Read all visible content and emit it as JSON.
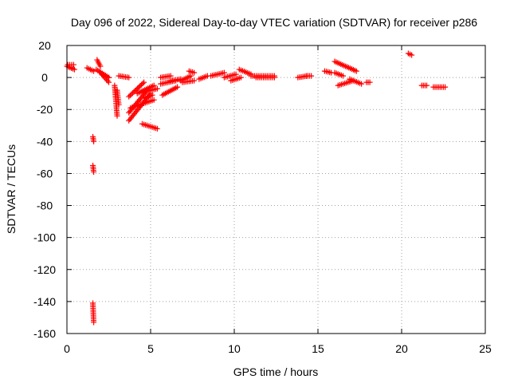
{
  "chart_data": {
    "type": "scatter",
    "title": "Day 096 of 2022, Sidereal Day-to-day VTEC variation (SDTVAR) for receiver p286",
    "xlabel": "GPS time / hours",
    "ylabel": "SDTVAR / TECUs",
    "xlim": [
      0,
      25
    ],
    "ylim": [
      -160,
      20
    ],
    "xticks": [
      0,
      5,
      10,
      15,
      20,
      25
    ],
    "xtick_labels": [
      "0",
      "5",
      "10",
      "15",
      "20",
      "25"
    ],
    "yticks": [
      20,
      0,
      -20,
      -40,
      -60,
      -80,
      -100,
      -120,
      -140,
      -160
    ],
    "ytick_labels": [
      "20",
      "0",
      "-20",
      "-40",
      "-60",
      "-80",
      "-100",
      "-120",
      "-140",
      "-160"
    ],
    "grid": true,
    "marker": "plus",
    "color": "#ff0000",
    "series": [
      {
        "name": "SDTVAR",
        "segments": [
          {
            "x0": 0.0,
            "x1": 0.45,
            "y0": 7,
            "y1": 5
          },
          {
            "x0": 0.05,
            "x1": 0.4,
            "y0": 8,
            "y1": 8
          },
          {
            "x0": 1.2,
            "x1": 1.6,
            "y0": 6,
            "y1": 4
          },
          {
            "x0": 1.55,
            "x1": 1.6,
            "y0": -37,
            "y1": -40
          },
          {
            "x0": 1.55,
            "x1": 1.6,
            "y0": -55,
            "y1": -59
          },
          {
            "x0": 1.55,
            "x1": 1.6,
            "y0": -141,
            "y1": -153
          },
          {
            "x0": 1.8,
            "x1": 2.0,
            "y0": 11,
            "y1": 7
          },
          {
            "x0": 1.75,
            "x1": 2.5,
            "y0": 5,
            "y1": 0
          },
          {
            "x0": 2.0,
            "x1": 2.5,
            "y0": 3,
            "y1": -3
          },
          {
            "x0": 2.1,
            "x1": 2.5,
            "y0": 2,
            "y1": 0
          },
          {
            "x0": 2.85,
            "x1": 3.0,
            "y0": -5,
            "y1": -24
          },
          {
            "x0": 3.0,
            "x1": 3.1,
            "y0": -8,
            "y1": -17
          },
          {
            "x0": 3.1,
            "x1": 3.7,
            "y0": 1,
            "y1": 0
          },
          {
            "x0": 3.7,
            "x1": 4.6,
            "y0": -12,
            "y1": -3
          },
          {
            "x0": 3.7,
            "x1": 5.0,
            "y0": -27,
            "y1": -10
          },
          {
            "x0": 3.7,
            "x1": 4.8,
            "y0": -22,
            "y1": -8
          },
          {
            "x0": 3.8,
            "x1": 5.2,
            "y0": -19,
            "y1": -14
          },
          {
            "x0": 4.2,
            "x1": 5.2,
            "y0": -10,
            "y1": -5
          },
          {
            "x0": 4.6,
            "x1": 5.4,
            "y0": -9,
            "y1": -7
          },
          {
            "x0": 4.5,
            "x1": 5.4,
            "y0": -29,
            "y1": -32
          },
          {
            "x0": 4.6,
            "x1": 5.1,
            "y0": -13,
            "y1": -11
          },
          {
            "x0": 5.6,
            "x1": 6.2,
            "y0": 0,
            "y1": 1
          },
          {
            "x0": 5.6,
            "x1": 6.5,
            "y0": -4,
            "y1": -2
          },
          {
            "x0": 5.7,
            "x1": 6.6,
            "y0": -11,
            "y1": -6
          },
          {
            "x0": 6.2,
            "x1": 6.8,
            "y0": -2,
            "y1": -1
          },
          {
            "x0": 6.8,
            "x1": 7.4,
            "y0": -2,
            "y1": 1
          },
          {
            "x0": 6.9,
            "x1": 7.6,
            "y0": -3,
            "y1": -2
          },
          {
            "x0": 7.3,
            "x1": 7.6,
            "y0": 4,
            "y1": 3
          },
          {
            "x0": 7.9,
            "x1": 8.4,
            "y0": -1,
            "y1": 1
          },
          {
            "x0": 8.6,
            "x1": 9.4,
            "y0": 1,
            "y1": 3
          },
          {
            "x0": 9.4,
            "x1": 10.1,
            "y0": 0,
            "y1": 2
          },
          {
            "x0": 9.8,
            "x1": 10.4,
            "y0": -2,
            "y1": 0
          },
          {
            "x0": 10.3,
            "x1": 11.0,
            "y0": 5,
            "y1": 2
          },
          {
            "x0": 11.0,
            "x1": 12.4,
            "y0": 1,
            "y1": 1
          },
          {
            "x0": 11.3,
            "x1": 12.4,
            "y0": 0,
            "y1": 0
          },
          {
            "x0": 13.8,
            "x1": 14.4,
            "y0": 0,
            "y1": 1
          },
          {
            "x0": 14.3,
            "x1": 14.6,
            "y0": 1,
            "y1": 1
          },
          {
            "x0": 15.4,
            "x1": 15.8,
            "y0": 4,
            "y1": 3
          },
          {
            "x0": 16.0,
            "x1": 17.3,
            "y0": 10,
            "y1": 4
          },
          {
            "x0": 16.0,
            "x1": 16.5,
            "y0": 3,
            "y1": 1
          },
          {
            "x0": 16.2,
            "x1": 17.1,
            "y0": -5,
            "y1": -2
          },
          {
            "x0": 16.9,
            "x1": 17.6,
            "y0": -1,
            "y1": -4
          },
          {
            "x0": 17.9,
            "x1": 18.1,
            "y0": -3,
            "y1": -3
          },
          {
            "x0": 20.4,
            "x1": 20.6,
            "y0": 15,
            "y1": 14
          },
          {
            "x0": 21.2,
            "x1": 21.5,
            "y0": -5,
            "y1": -5
          },
          {
            "x0": 21.9,
            "x1": 22.6,
            "y0": -6,
            "y1": -6
          }
        ]
      }
    ]
  }
}
